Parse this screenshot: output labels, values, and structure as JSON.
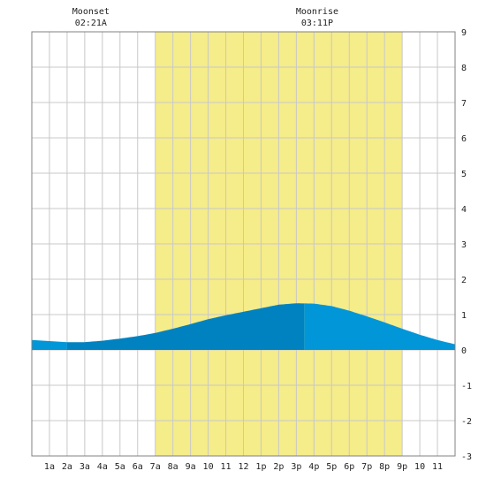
{
  "chart_data": {
    "type": "area",
    "annotations": [
      {
        "label": "Moonset",
        "time": "02:21A",
        "hour": 2.35
      },
      {
        "label": "Moonrise",
        "time": "03:11P",
        "hour": 15.18
      }
    ],
    "daylight": {
      "start_hour": 6.0,
      "end_hour": 20.0
    },
    "x_tick_labels": [
      "1a",
      "2a",
      "3a",
      "4a",
      "5a",
      "6a",
      "7a",
      "8a",
      "9a",
      "10",
      "11",
      "12",
      "1p",
      "2p",
      "3p",
      "4p",
      "5p",
      "6p",
      "7p",
      "8p",
      "9p",
      "10",
      "11"
    ],
    "y_tick_labels": [
      "9",
      "8",
      "7",
      "6",
      "5",
      "4",
      "3",
      "2",
      "1",
      "0",
      "-1",
      "-2",
      "-3"
    ],
    "xlim": [
      -1,
      23
    ],
    "ylim": [
      -3,
      9
    ],
    "grid": true,
    "series": [
      {
        "color_rising": "#0082c0",
        "color_falling": "#0096d8",
        "x": [
          -1,
          0,
          1,
          2,
          3,
          4,
          5,
          6,
          7,
          8,
          9,
          10,
          11,
          12,
          13,
          14,
          15,
          16,
          17,
          18,
          19,
          20,
          21,
          22,
          23
        ],
        "y": [
          0.28,
          0.25,
          0.22,
          0.22,
          0.26,
          0.32,
          0.39,
          0.48,
          0.6,
          0.73,
          0.87,
          0.98,
          1.08,
          1.18,
          1.28,
          1.32,
          1.31,
          1.24,
          1.11,
          0.95,
          0.78,
          0.6,
          0.43,
          0.28,
          0.16
        ],
        "rising_until_hour": 14.45
      }
    ],
    "colors": {
      "daylight": "#f5ec8a",
      "grid": "#c8c8c8",
      "frame": "#808080"
    }
  }
}
